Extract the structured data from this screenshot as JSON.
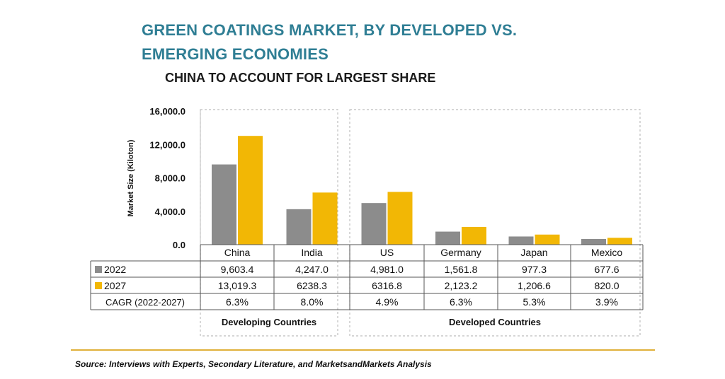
{
  "chart_data": {
    "type": "bar",
    "title": "GREEN COATINGS MARKET, BY DEVELOPED VS. EMERGING ECONOMIES",
    "subtitle": "CHINA TO ACCOUNT FOR LARGEST SHARE",
    "ylabel": "Market Size (Kiloton)",
    "ylim": [
      0,
      16000
    ],
    "yticks": [
      "16,000.0",
      "12,000.0",
      "8,000.0",
      "4,000.0",
      "0.0"
    ],
    "ytick_values": [
      16000,
      12000,
      8000,
      4000,
      0
    ],
    "categories": [
      "China",
      "India",
      "US",
      "Germany",
      "Japan",
      "Mexico"
    ],
    "series": [
      {
        "name": "2022",
        "color": "#8c8c8c",
        "values": [
          9603.4,
          4247.0,
          4981.0,
          1561.8,
          977.3,
          677.6
        ],
        "labels": [
          "9,603.4",
          "4,247.0",
          "4,981.0",
          "1,561.8",
          "977.3",
          "677.6"
        ]
      },
      {
        "name": "2027",
        "color": "#f2b705",
        "values": [
          13019.3,
          6238.3,
          6316.8,
          2123.2,
          1206.6,
          820.0
        ],
        "labels": [
          "13,019.3",
          "6238.3",
          "6316.8",
          "2,123.2",
          "1,206.6",
          "820.0"
        ]
      }
    ],
    "cagr_label": "CAGR (2022-2027)",
    "cagr": [
      "6.3%",
      "8.0%",
      "4.9%",
      "6.3%",
      "5.3%",
      "3.9%"
    ],
    "groups": [
      {
        "label": "Developing Countries",
        "categories": [
          "China",
          "India"
        ]
      },
      {
        "label": "Developed Countries",
        "categories": [
          "US",
          "Germany",
          "Japan",
          "Mexico"
        ]
      }
    ],
    "grid": false,
    "legend": "table-left"
  },
  "source": "Source: Interviews with Experts, Secondary Literature, and MarketsandMarkets Analysis"
}
